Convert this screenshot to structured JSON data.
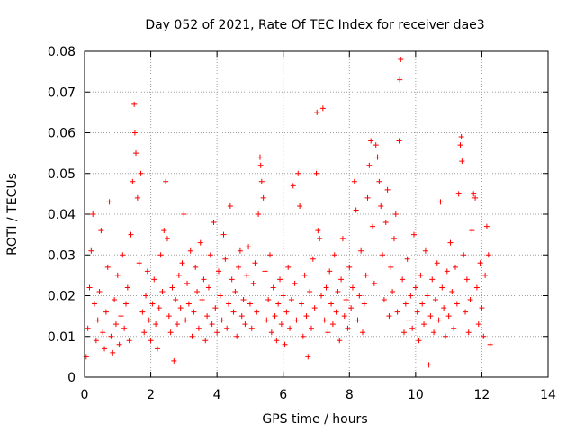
{
  "chart_data": {
    "type": "scatter",
    "title": "Day 052 of 2021, Rate Of TEC Index for receiver dae3",
    "xlabel": "GPS time / hours",
    "ylabel": "ROTI / TECUs",
    "xlim": [
      0,
      14
    ],
    "ylim": [
      0,
      0.08
    ],
    "xticks": [
      0,
      2,
      4,
      6,
      8,
      10,
      12,
      14
    ],
    "xtick_labels": [
      "0",
      "2",
      "4",
      "6",
      "8",
      "10",
      "12",
      "14"
    ],
    "yticks": [
      0,
      0.01,
      0.02,
      0.03,
      0.04,
      0.05,
      0.06,
      0.07,
      0.08
    ],
    "ytick_labels": [
      "0",
      "0.01",
      "0.02",
      "0.03",
      "0.04",
      "0.05",
      "0.06",
      "0.07",
      "0.08"
    ],
    "grid": true,
    "marker": "+",
    "color": "#ff0000",
    "series": [
      {
        "name": "ROTI",
        "points": [
          [
            0.05,
            0.005
          ],
          [
            0.1,
            0.012
          ],
          [
            0.15,
            0.022
          ],
          [
            0.2,
            0.031
          ],
          [
            0.25,
            0.04
          ],
          [
            0.3,
            0.018
          ],
          [
            0.35,
            0.009
          ],
          [
            0.4,
            0.014
          ],
          [
            0.45,
            0.021
          ],
          [
            0.5,
            0.036
          ],
          [
            0.55,
            0.011
          ],
          [
            0.6,
            0.007
          ],
          [
            0.65,
            0.016
          ],
          [
            0.7,
            0.027
          ],
          [
            0.75,
            0.043
          ],
          [
            0.8,
            0.01
          ],
          [
            0.85,
            0.006
          ],
          [
            0.9,
            0.019
          ],
          [
            0.95,
            0.013
          ],
          [
            1.0,
            0.025
          ],
          [
            1.05,
            0.008
          ],
          [
            1.1,
            0.015
          ],
          [
            1.15,
            0.03
          ],
          [
            1.2,
            0.012
          ],
          [
            1.25,
            0.018
          ],
          [
            1.3,
            0.022
          ],
          [
            1.35,
            0.009
          ],
          [
            1.4,
            0.035
          ],
          [
            1.45,
            0.048
          ],
          [
            1.5,
            0.067
          ],
          [
            1.52,
            0.06
          ],
          [
            1.55,
            0.055
          ],
          [
            1.6,
            0.044
          ],
          [
            1.65,
            0.028
          ],
          [
            1.7,
            0.05
          ],
          [
            1.75,
            0.016
          ],
          [
            1.8,
            0.011
          ],
          [
            1.85,
            0.02
          ],
          [
            1.9,
            0.026
          ],
          [
            1.95,
            0.014
          ],
          [
            2.0,
            0.009
          ],
          [
            2.05,
            0.018
          ],
          [
            2.1,
            0.024
          ],
          [
            2.15,
            0.013
          ],
          [
            2.2,
            0.007
          ],
          [
            2.25,
            0.017
          ],
          [
            2.3,
            0.03
          ],
          [
            2.35,
            0.021
          ],
          [
            2.4,
            0.036
          ],
          [
            2.45,
            0.048
          ],
          [
            2.5,
            0.034
          ],
          [
            2.55,
            0.015
          ],
          [
            2.6,
            0.011
          ],
          [
            2.65,
            0.022
          ],
          [
            2.7,
            0.004
          ],
          [
            2.75,
            0.019
          ],
          [
            2.8,
            0.013
          ],
          [
            2.85,
            0.025
          ],
          [
            2.9,
            0.017
          ],
          [
            2.95,
            0.028
          ],
          [
            3.0,
            0.04
          ],
          [
            3.05,
            0.014
          ],
          [
            3.1,
            0.023
          ],
          [
            3.15,
            0.018
          ],
          [
            3.2,
            0.031
          ],
          [
            3.25,
            0.01
          ],
          [
            3.3,
            0.016
          ],
          [
            3.35,
            0.027
          ],
          [
            3.4,
            0.021
          ],
          [
            3.45,
            0.012
          ],
          [
            3.5,
            0.033
          ],
          [
            3.55,
            0.019
          ],
          [
            3.6,
            0.024
          ],
          [
            3.65,
            0.009
          ],
          [
            3.7,
            0.015
          ],
          [
            3.75,
            0.022
          ],
          [
            3.8,
            0.03
          ],
          [
            3.85,
            0.013
          ],
          [
            3.9,
            0.038
          ],
          [
            3.95,
            0.017
          ],
          [
            4.0,
            0.011
          ],
          [
            4.05,
            0.026
          ],
          [
            4.1,
            0.02
          ],
          [
            4.15,
            0.014
          ],
          [
            4.2,
            0.035
          ],
          [
            4.25,
            0.029
          ],
          [
            4.3,
            0.012
          ],
          [
            4.35,
            0.018
          ],
          [
            4.4,
            0.042
          ],
          [
            4.45,
            0.024
          ],
          [
            4.5,
            0.016
          ],
          [
            4.55,
            0.021
          ],
          [
            4.6,
            0.01
          ],
          [
            4.65,
            0.027
          ],
          [
            4.7,
            0.031
          ],
          [
            4.75,
            0.015
          ],
          [
            4.8,
            0.019
          ],
          [
            4.85,
            0.013
          ],
          [
            4.9,
            0.025
          ],
          [
            4.95,
            0.032
          ],
          [
            5.0,
            0.018
          ],
          [
            5.05,
            0.012
          ],
          [
            5.1,
            0.023
          ],
          [
            5.15,
            0.028
          ],
          [
            5.2,
            0.016
          ],
          [
            5.25,
            0.04
          ],
          [
            5.3,
            0.054
          ],
          [
            5.32,
            0.052
          ],
          [
            5.35,
            0.048
          ],
          [
            5.4,
            0.044
          ],
          [
            5.45,
            0.026
          ],
          [
            5.5,
            0.014
          ],
          [
            5.55,
            0.019
          ],
          [
            5.6,
            0.03
          ],
          [
            5.65,
            0.011
          ],
          [
            5.7,
            0.022
          ],
          [
            5.75,
            0.015
          ],
          [
            5.8,
            0.009
          ],
          [
            5.85,
            0.018
          ],
          [
            5.9,
            0.024
          ],
          [
            5.95,
            0.013
          ],
          [
            6.0,
            0.02
          ],
          [
            6.05,
            0.008
          ],
          [
            6.1,
            0.016
          ],
          [
            6.15,
            0.027
          ],
          [
            6.2,
            0.012
          ],
          [
            6.25,
            0.019
          ],
          [
            6.3,
            0.047
          ],
          [
            6.35,
            0.023
          ],
          [
            6.4,
            0.014
          ],
          [
            6.45,
            0.05
          ],
          [
            6.5,
            0.042
          ],
          [
            6.55,
            0.018
          ],
          [
            6.6,
            0.01
          ],
          [
            6.65,
            0.025
          ],
          [
            6.7,
            0.015
          ],
          [
            6.75,
            0.005
          ],
          [
            6.8,
            0.021
          ],
          [
            6.85,
            0.012
          ],
          [
            6.9,
            0.029
          ],
          [
            6.95,
            0.017
          ],
          [
            7.0,
            0.05
          ],
          [
            7.02,
            0.065
          ],
          [
            7.05,
            0.036
          ],
          [
            7.1,
            0.034
          ],
          [
            7.15,
            0.02
          ],
          [
            7.2,
            0.066
          ],
          [
            7.25,
            0.014
          ],
          [
            7.3,
            0.022
          ],
          [
            7.35,
            0.011
          ],
          [
            7.4,
            0.026
          ],
          [
            7.45,
            0.018
          ],
          [
            7.5,
            0.013
          ],
          [
            7.55,
            0.03
          ],
          [
            7.6,
            0.016
          ],
          [
            7.65,
            0.021
          ],
          [
            7.7,
            0.009
          ],
          [
            7.75,
            0.024
          ],
          [
            7.8,
            0.034
          ],
          [
            7.85,
            0.015
          ],
          [
            7.9,
            0.019
          ],
          [
            7.95,
            0.012
          ],
          [
            8.0,
            0.027
          ],
          [
            8.05,
            0.017
          ],
          [
            8.1,
            0.022
          ],
          [
            8.15,
            0.048
          ],
          [
            8.2,
            0.041
          ],
          [
            8.25,
            0.014
          ],
          [
            8.3,
            0.02
          ],
          [
            8.35,
            0.031
          ],
          [
            8.4,
            0.011
          ],
          [
            8.45,
            0.018
          ],
          [
            8.5,
            0.025
          ],
          [
            8.55,
            0.044
          ],
          [
            8.6,
            0.052
          ],
          [
            8.65,
            0.058
          ],
          [
            8.7,
            0.037
          ],
          [
            8.75,
            0.023
          ],
          [
            8.8,
            0.057
          ],
          [
            8.85,
            0.054
          ],
          [
            8.9,
            0.048
          ],
          [
            8.95,
            0.042
          ],
          [
            9.0,
            0.03
          ],
          [
            9.05,
            0.019
          ],
          [
            9.1,
            0.038
          ],
          [
            9.15,
            0.046
          ],
          [
            9.2,
            0.015
          ],
          [
            9.25,
            0.027
          ],
          [
            9.3,
            0.021
          ],
          [
            9.35,
            0.034
          ],
          [
            9.4,
            0.04
          ],
          [
            9.45,
            0.016
          ],
          [
            9.5,
            0.058
          ],
          [
            9.52,
            0.073
          ],
          [
            9.55,
            0.078
          ],
          [
            9.6,
            0.024
          ],
          [
            9.65,
            0.011
          ],
          [
            9.7,
            0.018
          ],
          [
            9.75,
            0.029
          ],
          [
            9.8,
            0.014
          ],
          [
            9.85,
            0.02
          ],
          [
            9.9,
            0.012
          ],
          [
            9.95,
            0.035
          ],
          [
            10.0,
            0.022
          ],
          [
            10.05,
            0.016
          ],
          [
            10.1,
            0.009
          ],
          [
            10.15,
            0.025
          ],
          [
            10.2,
            0.018
          ],
          [
            10.25,
            0.013
          ],
          [
            10.3,
            0.031
          ],
          [
            10.35,
            0.02
          ],
          [
            10.4,
            0.003
          ],
          [
            10.45,
            0.015
          ],
          [
            10.5,
            0.024
          ],
          [
            10.55,
            0.011
          ],
          [
            10.6,
            0.019
          ],
          [
            10.65,
            0.028
          ],
          [
            10.7,
            0.014
          ],
          [
            10.75,
            0.043
          ],
          [
            10.8,
            0.022
          ],
          [
            10.85,
            0.017
          ],
          [
            10.9,
            0.01
          ],
          [
            10.95,
            0.026
          ],
          [
            11.0,
            0.015
          ],
          [
            11.05,
            0.033
          ],
          [
            11.1,
            0.021
          ],
          [
            11.15,
            0.012
          ],
          [
            11.2,
            0.027
          ],
          [
            11.25,
            0.018
          ],
          [
            11.3,
            0.045
          ],
          [
            11.35,
            0.057
          ],
          [
            11.38,
            0.059
          ],
          [
            11.4,
            0.053
          ],
          [
            11.45,
            0.03
          ],
          [
            11.5,
            0.016
          ],
          [
            11.55,
            0.024
          ],
          [
            11.6,
            0.011
          ],
          [
            11.65,
            0.019
          ],
          [
            11.7,
            0.036
          ],
          [
            11.75,
            0.045
          ],
          [
            11.8,
            0.044
          ],
          [
            11.85,
            0.022
          ],
          [
            11.9,
            0.013
          ],
          [
            11.95,
            0.028
          ],
          [
            12.0,
            0.017
          ],
          [
            12.05,
            0.01
          ],
          [
            12.1,
            0.025
          ],
          [
            12.15,
            0.037
          ],
          [
            12.2,
            0.03
          ],
          [
            12.25,
            0.008
          ]
        ]
      }
    ]
  }
}
